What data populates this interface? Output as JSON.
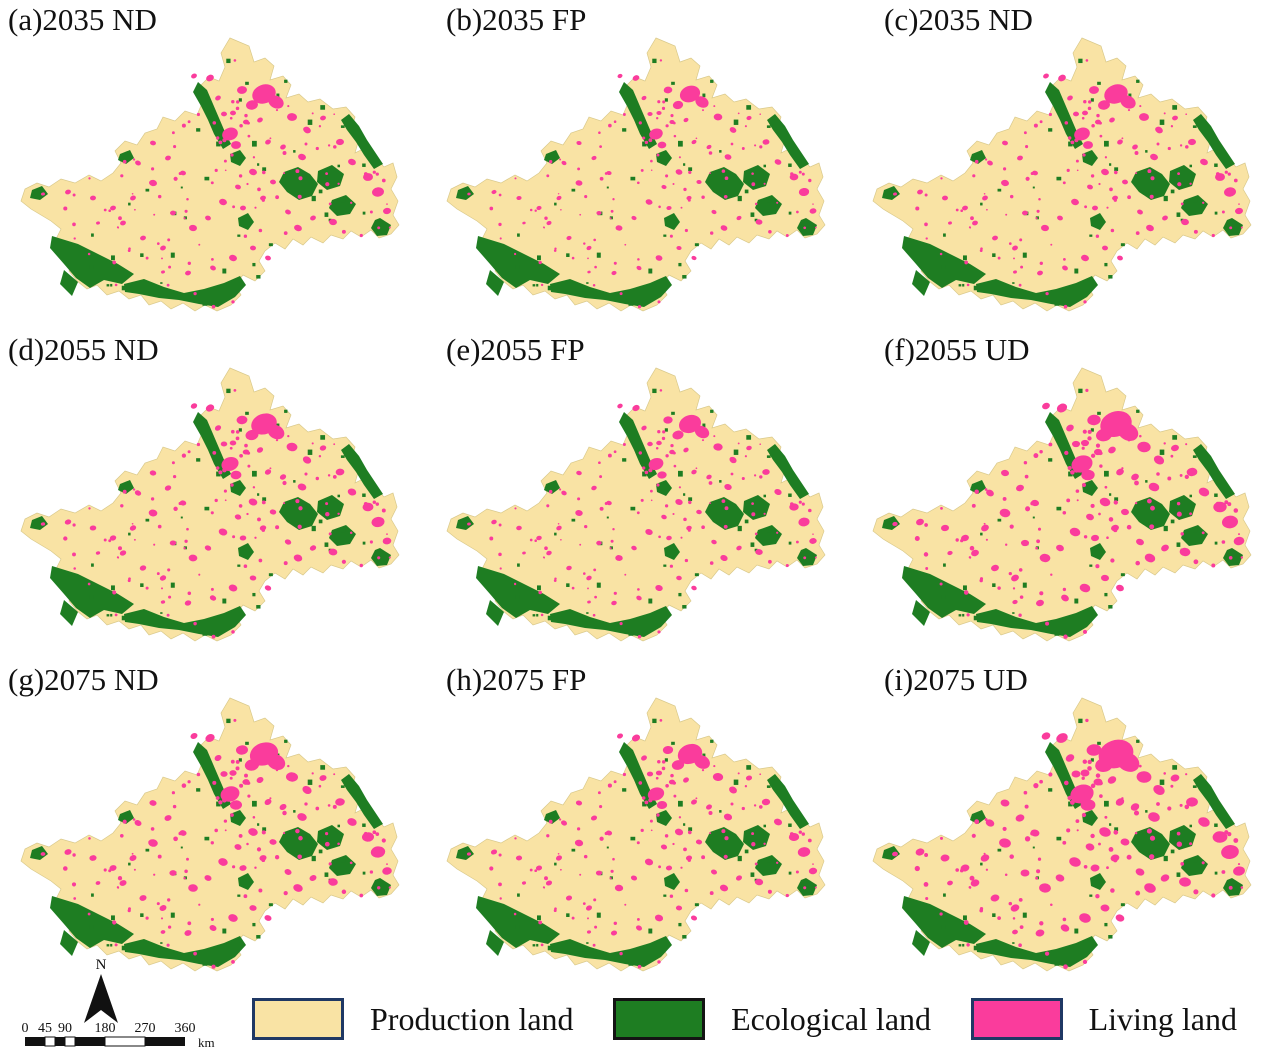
{
  "figure": {
    "panels": [
      {
        "id": "a",
        "label": "(a)2035 ND"
      },
      {
        "id": "b",
        "label": "(b)2035 FP"
      },
      {
        "id": "c",
        "label": "(c)2035 ND"
      },
      {
        "id": "d",
        "label": "(d)2055 ND"
      },
      {
        "id": "e",
        "label": "(e)2055 FP"
      },
      {
        "id": "f",
        "label": "(f)2055 UD"
      },
      {
        "id": "g",
        "label": "(g)2075 ND"
      },
      {
        "id": "h",
        "label": "(h)2075 FP"
      },
      {
        "id": "i",
        "label": "(i)2075 UD"
      }
    ],
    "legend": {
      "items": [
        {
          "label": "Production land",
          "color": "#F9E3A4",
          "border": "#1F3864"
        },
        {
          "label": "Ecological land",
          "color": "#1E7D22",
          "border": "#141414"
        },
        {
          "label": "Living land",
          "color": "#FA3C9C",
          "border": "#1F3864"
        }
      ]
    },
    "map_elements": {
      "north_label": "N",
      "scale_ticks": [
        "0",
        "45",
        "90",
        "180",
        "270",
        "360"
      ],
      "scale_unit": "km"
    },
    "colors": {
      "production": "#F9E3A4",
      "ecological": "#1E7D22",
      "living": "#FA3C9C",
      "outline": "#D9C98B"
    }
  }
}
